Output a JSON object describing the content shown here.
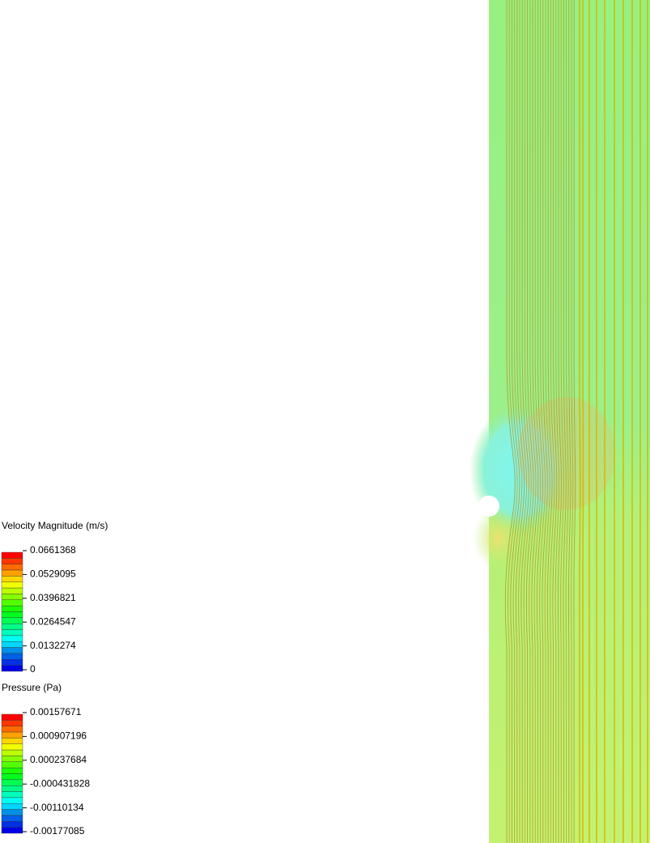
{
  "legends": [
    {
      "title": "Velocity Magnitude (m/s)",
      "ticks": [
        "0.0661368",
        "0.0529095",
        "0.0396821",
        "0.0264547",
        "0.0132274",
        "0"
      ]
    },
    {
      "title": "Pressure (Pa)",
      "ticks": [
        "0.00157671",
        "0.000907196",
        "0.000237684",
        "-0.000431828",
        "-0.00110134",
        "-0.00177085"
      ]
    }
  ]
}
